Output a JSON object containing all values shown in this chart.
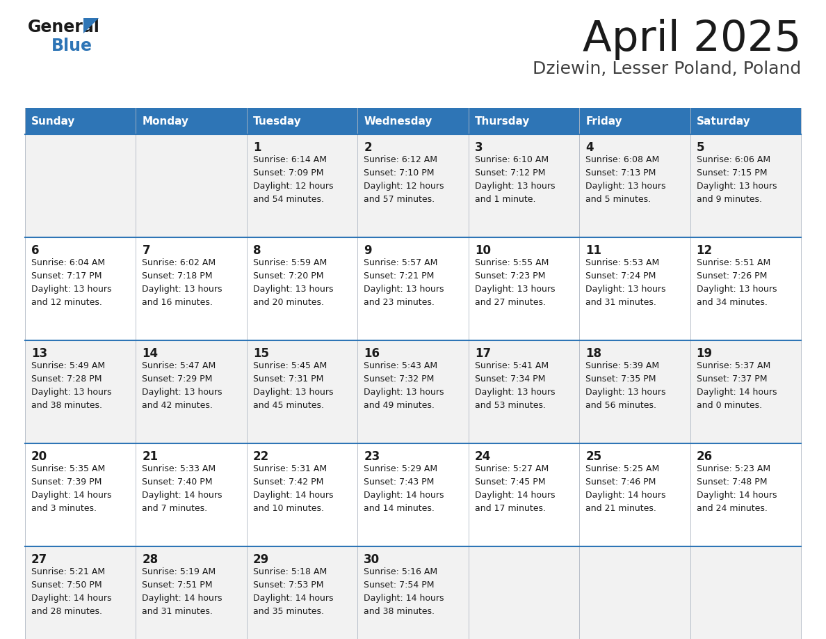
{
  "title": "April 2025",
  "subtitle": "Dziewin, Lesser Poland, Poland",
  "header_bg": "#2E75B6",
  "header_text": "#FFFFFF",
  "row_bg_light": "#F2F2F2",
  "row_bg_white": "#FFFFFF",
  "border_color": "#2E75B6",
  "cell_border_color": "#B0B8C4",
  "days_of_week": [
    "Sunday",
    "Monday",
    "Tuesday",
    "Wednesday",
    "Thursday",
    "Friday",
    "Saturday"
  ],
  "logo_general_color": "#1a1a1a",
  "logo_blue_color": "#2E75B6",
  "logo_triangle_color": "#2E75B6",
  "title_color": "#1a1a1a",
  "subtitle_color": "#404040",
  "day_num_color": "#1a1a1a",
  "info_color": "#1a1a1a",
  "weeks": [
    [
      {
        "day": "",
        "info": ""
      },
      {
        "day": "",
        "info": ""
      },
      {
        "day": "1",
        "info": "Sunrise: 6:14 AM\nSunset: 7:09 PM\nDaylight: 12 hours\nand 54 minutes."
      },
      {
        "day": "2",
        "info": "Sunrise: 6:12 AM\nSunset: 7:10 PM\nDaylight: 12 hours\nand 57 minutes."
      },
      {
        "day": "3",
        "info": "Sunrise: 6:10 AM\nSunset: 7:12 PM\nDaylight: 13 hours\nand 1 minute."
      },
      {
        "day": "4",
        "info": "Sunrise: 6:08 AM\nSunset: 7:13 PM\nDaylight: 13 hours\nand 5 minutes."
      },
      {
        "day": "5",
        "info": "Sunrise: 6:06 AM\nSunset: 7:15 PM\nDaylight: 13 hours\nand 9 minutes."
      }
    ],
    [
      {
        "day": "6",
        "info": "Sunrise: 6:04 AM\nSunset: 7:17 PM\nDaylight: 13 hours\nand 12 minutes."
      },
      {
        "day": "7",
        "info": "Sunrise: 6:02 AM\nSunset: 7:18 PM\nDaylight: 13 hours\nand 16 minutes."
      },
      {
        "day": "8",
        "info": "Sunrise: 5:59 AM\nSunset: 7:20 PM\nDaylight: 13 hours\nand 20 minutes."
      },
      {
        "day": "9",
        "info": "Sunrise: 5:57 AM\nSunset: 7:21 PM\nDaylight: 13 hours\nand 23 minutes."
      },
      {
        "day": "10",
        "info": "Sunrise: 5:55 AM\nSunset: 7:23 PM\nDaylight: 13 hours\nand 27 minutes."
      },
      {
        "day": "11",
        "info": "Sunrise: 5:53 AM\nSunset: 7:24 PM\nDaylight: 13 hours\nand 31 minutes."
      },
      {
        "day": "12",
        "info": "Sunrise: 5:51 AM\nSunset: 7:26 PM\nDaylight: 13 hours\nand 34 minutes."
      }
    ],
    [
      {
        "day": "13",
        "info": "Sunrise: 5:49 AM\nSunset: 7:28 PM\nDaylight: 13 hours\nand 38 minutes."
      },
      {
        "day": "14",
        "info": "Sunrise: 5:47 AM\nSunset: 7:29 PM\nDaylight: 13 hours\nand 42 minutes."
      },
      {
        "day": "15",
        "info": "Sunrise: 5:45 AM\nSunset: 7:31 PM\nDaylight: 13 hours\nand 45 minutes."
      },
      {
        "day": "16",
        "info": "Sunrise: 5:43 AM\nSunset: 7:32 PM\nDaylight: 13 hours\nand 49 minutes."
      },
      {
        "day": "17",
        "info": "Sunrise: 5:41 AM\nSunset: 7:34 PM\nDaylight: 13 hours\nand 53 minutes."
      },
      {
        "day": "18",
        "info": "Sunrise: 5:39 AM\nSunset: 7:35 PM\nDaylight: 13 hours\nand 56 minutes."
      },
      {
        "day": "19",
        "info": "Sunrise: 5:37 AM\nSunset: 7:37 PM\nDaylight: 14 hours\nand 0 minutes."
      }
    ],
    [
      {
        "day": "20",
        "info": "Sunrise: 5:35 AM\nSunset: 7:39 PM\nDaylight: 14 hours\nand 3 minutes."
      },
      {
        "day": "21",
        "info": "Sunrise: 5:33 AM\nSunset: 7:40 PM\nDaylight: 14 hours\nand 7 minutes."
      },
      {
        "day": "22",
        "info": "Sunrise: 5:31 AM\nSunset: 7:42 PM\nDaylight: 14 hours\nand 10 minutes."
      },
      {
        "day": "23",
        "info": "Sunrise: 5:29 AM\nSunset: 7:43 PM\nDaylight: 14 hours\nand 14 minutes."
      },
      {
        "day": "24",
        "info": "Sunrise: 5:27 AM\nSunset: 7:45 PM\nDaylight: 14 hours\nand 17 minutes."
      },
      {
        "day": "25",
        "info": "Sunrise: 5:25 AM\nSunset: 7:46 PM\nDaylight: 14 hours\nand 21 minutes."
      },
      {
        "day": "26",
        "info": "Sunrise: 5:23 AM\nSunset: 7:48 PM\nDaylight: 14 hours\nand 24 minutes."
      }
    ],
    [
      {
        "day": "27",
        "info": "Sunrise: 5:21 AM\nSunset: 7:50 PM\nDaylight: 14 hours\nand 28 minutes."
      },
      {
        "day": "28",
        "info": "Sunrise: 5:19 AM\nSunset: 7:51 PM\nDaylight: 14 hours\nand 31 minutes."
      },
      {
        "day": "29",
        "info": "Sunrise: 5:18 AM\nSunset: 7:53 PM\nDaylight: 14 hours\nand 35 minutes."
      },
      {
        "day": "30",
        "info": "Sunrise: 5:16 AM\nSunset: 7:54 PM\nDaylight: 14 hours\nand 38 minutes."
      },
      {
        "day": "",
        "info": ""
      },
      {
        "day": "",
        "info": ""
      },
      {
        "day": "",
        "info": ""
      }
    ]
  ]
}
